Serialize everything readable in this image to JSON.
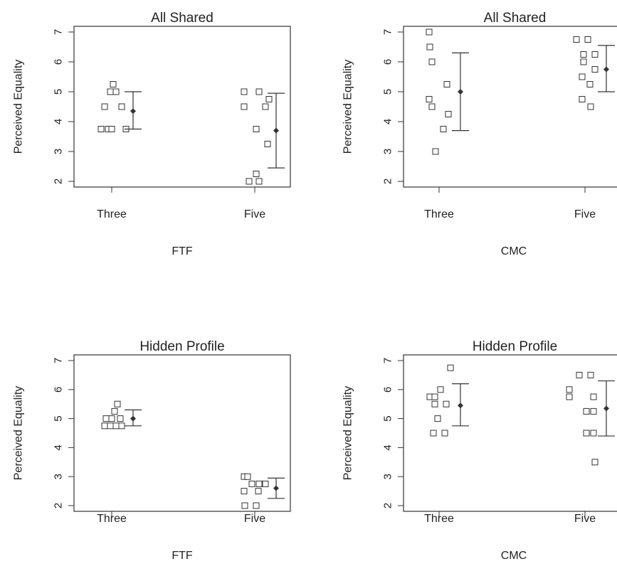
{
  "chart_data": [
    {
      "type": "scatter",
      "title": "All Shared",
      "ylabel": "Perceived Equality",
      "xlabel": "FTF",
      "categories": [
        "Three",
        "Five"
      ],
      "ylim": [
        2,
        7
      ],
      "yticks": [
        2,
        3,
        4,
        5,
        6,
        7
      ],
      "grid": false,
      "points": [
        {
          "category": "Three",
          "y": [
            3.75,
            3.75,
            3.75,
            3.75,
            4.5,
            4.5,
            5.0,
            5.0,
            5.25
          ]
        },
        {
          "category": "Five",
          "y": [
            5.0,
            5.0,
            4.5,
            4.5,
            4.75,
            3.75,
            3.25,
            2.25,
            2.0,
            2.0
          ]
        }
      ],
      "summary": [
        {
          "category": "Three",
          "mean": 4.35,
          "lower": 3.75,
          "upper": 5.0
        },
        {
          "category": "Five",
          "mean": 3.7,
          "lower": 2.45,
          "upper": 4.95
        }
      ]
    },
    {
      "type": "scatter",
      "title": "All Shared",
      "ylabel": "Perceived Equality",
      "xlabel": "CMC",
      "categories": [
        "Three",
        "Five"
      ],
      "ylim": [
        2,
        7
      ],
      "yticks": [
        2,
        3,
        4,
        5,
        6,
        7
      ],
      "grid": false,
      "points": [
        {
          "category": "Three",
          "y": [
            7.0,
            6.5,
            6.0,
            4.75,
            5.25,
            4.5,
            4.25,
            3.75,
            3.0
          ]
        },
        {
          "category": "Five",
          "y": [
            6.75,
            6.75,
            6.25,
            6.25,
            6.0,
            5.75,
            5.5,
            5.25,
            4.75,
            4.5
          ]
        }
      ],
      "summary": [
        {
          "category": "Three",
          "mean": 5.0,
          "lower": 3.7,
          "upper": 6.3
        },
        {
          "category": "Five",
          "mean": 5.75,
          "lower": 5.0,
          "upper": 6.55
        }
      ]
    },
    {
      "type": "scatter",
      "title": "Hidden Profile",
      "ylabel": "Perceived Equality",
      "xlabel": "FTF",
      "categories": [
        "Three",
        "Five"
      ],
      "ylim": [
        2,
        7
      ],
      "yticks": [
        2,
        3,
        4,
        5,
        6,
        7
      ],
      "grid": false,
      "points": [
        {
          "category": "Three",
          "y": [
            4.75,
            4.75,
            4.75,
            4.75,
            5.0,
            5.0,
            5.0,
            5.25,
            5.5
          ]
        },
        {
          "category": "Five",
          "y": [
            3.0,
            3.0,
            2.75,
            2.75,
            2.5,
            2.5,
            2.75,
            2.0,
            2.0
          ]
        }
      ],
      "summary": [
        {
          "category": "Three",
          "mean": 5.0,
          "lower": 4.75,
          "upper": 5.3
        },
        {
          "category": "Five",
          "mean": 2.6,
          "lower": 2.25,
          "upper": 2.95
        }
      ]
    },
    {
      "type": "scatter",
      "title": "Hidden Profile",
      "ylabel": "Perceived Equality",
      "xlabel": "CMC",
      "categories": [
        "Three",
        "Five"
      ],
      "ylim": [
        2,
        7
      ],
      "yticks": [
        2,
        3,
        4,
        5,
        6,
        7
      ],
      "grid": false,
      "points": [
        {
          "category": "Three",
          "y": [
            5.75,
            5.75,
            6.0,
            5.5,
            5.5,
            6.75,
            5.0,
            4.5,
            4.5
          ]
        },
        {
          "category": "Five",
          "y": [
            6.0,
            5.75,
            6.5,
            6.5,
            5.75,
            5.25,
            5.25,
            4.5,
            4.5,
            3.5
          ]
        }
      ],
      "summary": [
        {
          "category": "Three",
          "mean": 5.45,
          "lower": 4.75,
          "upper": 6.2
        },
        {
          "category": "Five",
          "mean": 5.35,
          "lower": 4.4,
          "upper": 6.3
        }
      ]
    }
  ]
}
